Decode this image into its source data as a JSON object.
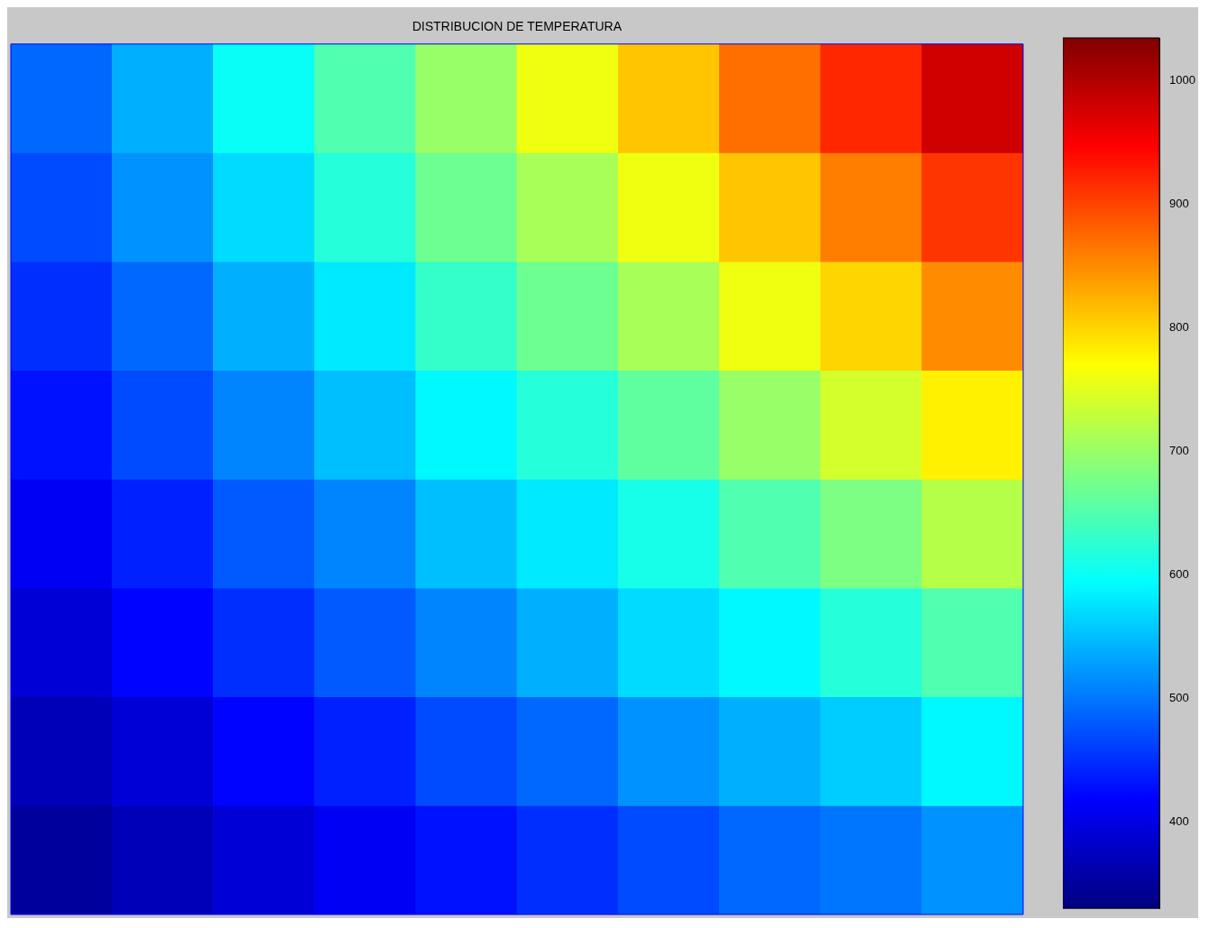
{
  "chart_data": {
    "type": "heatmap",
    "title": "DISTRIBUCION DE TEMPERATURA",
    "categories": [
      null,
      null,
      null,
      null,
      null,
      null,
      null,
      null,
      null,
      null
    ],
    "y_categories": [
      null,
      null,
      null,
      null,
      null,
      null,
      null,
      null
    ],
    "cells": [
      [
        490,
        540,
        600,
        650,
        700,
        760,
        810,
        870,
        920,
        980
      ],
      [
        470,
        520,
        570,
        620,
        670,
        710,
        760,
        810,
        860,
        910
      ],
      [
        450,
        490,
        540,
        580,
        630,
        670,
        710,
        760,
        800,
        850
      ],
      [
        430,
        470,
        510,
        550,
        590,
        620,
        660,
        700,
        740,
        780
      ],
      [
        410,
        440,
        480,
        510,
        550,
        580,
        610,
        650,
        680,
        720
      ],
      [
        390,
        420,
        450,
        480,
        510,
        540,
        570,
        590,
        620,
        650
      ],
      [
        370,
        390,
        420,
        440,
        470,
        490,
        520,
        540,
        560,
        590
      ],
      [
        350,
        370,
        390,
        410,
        430,
        450,
        470,
        490,
        500,
        520
      ]
    ],
    "clim": [
      330,
      1035
    ],
    "cticks": [
      400,
      500,
      600,
      700,
      800,
      900,
      1000
    ],
    "tick_labels": false
  }
}
